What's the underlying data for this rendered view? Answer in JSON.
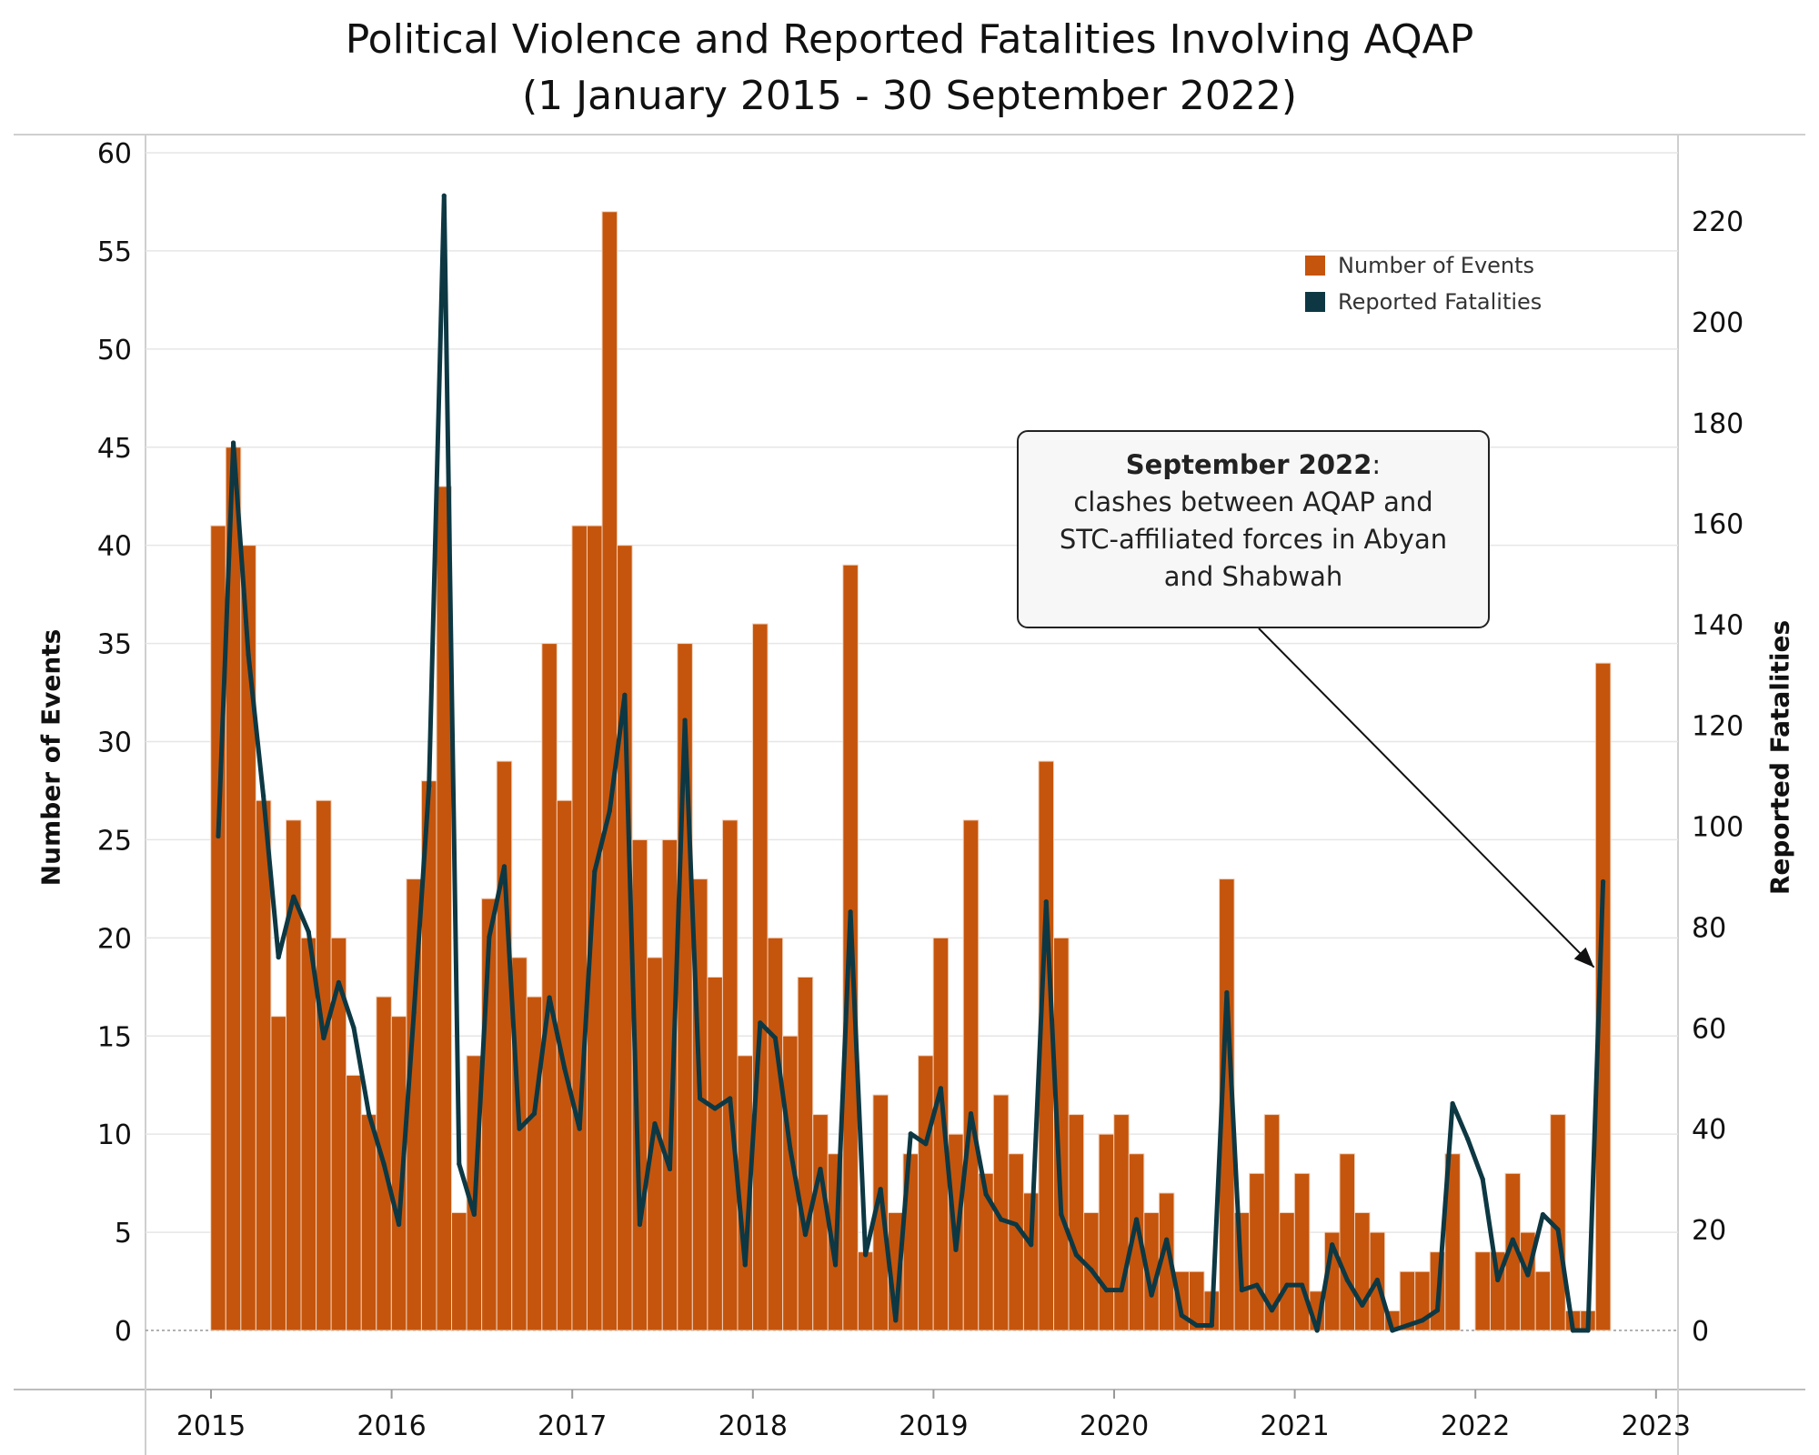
{
  "title_line1": "Political Violence and Reported Fatalities Involving AQAP",
  "title_line2": "(1 January 2015 - 30 September 2022)",
  "annotation": {
    "heading": "September 2022",
    "heading_suffix": ":",
    "body_lines": [
      "clashes between AQAP and",
      "STC-affiliated forces in Abyan",
      "and Shabwah"
    ]
  },
  "colors": {
    "bars": "#c5550c",
    "line": "#0d3843",
    "grid": "#e6e6e6"
  },
  "chart_data": {
    "type": "bar",
    "x_start": "2015-01",
    "x_end": "2022-09",
    "xlabel": "",
    "x_ticks": [
      "2015",
      "2016",
      "2017",
      "2018",
      "2019",
      "2020",
      "2021",
      "2022",
      "2023"
    ],
    "ylabel": "Number of Events",
    "ylim": [
      0,
      60
    ],
    "y_ticks": [
      0,
      5,
      10,
      15,
      20,
      25,
      30,
      35,
      40,
      45,
      50,
      55,
      60
    ],
    "y2label": "Reported Fatalities",
    "y2lim": [
      0,
      240
    ],
    "y2_ticks": [
      0,
      20,
      40,
      60,
      80,
      100,
      120,
      140,
      160,
      180,
      200,
      220
    ],
    "legend_position": "top-right",
    "series": [
      {
        "name": "Number of Events",
        "type": "bar",
        "axis": "left",
        "values": [
          41,
          45,
          40,
          27,
          16,
          26,
          20,
          27,
          20,
          13,
          11,
          17,
          16,
          23,
          28,
          43,
          6,
          14,
          22,
          29,
          19,
          17,
          35,
          27,
          41,
          41,
          57,
          40,
          25,
          19,
          25,
          35,
          23,
          18,
          26,
          14,
          36,
          20,
          15,
          18,
          11,
          9,
          39,
          4,
          12,
          6,
          9,
          14,
          20,
          10,
          26,
          8,
          12,
          9,
          7,
          29,
          20,
          11,
          6,
          10,
          11,
          9,
          6,
          7,
          3,
          3,
          2,
          23,
          6,
          8,
          11,
          6,
          8,
          2,
          5,
          9,
          6,
          5,
          1,
          3,
          3,
          4,
          9,
          0,
          4,
          4,
          8,
          5,
          3,
          11,
          1,
          1,
          34
        ]
      },
      {
        "name": "Reported Fatalities",
        "type": "line",
        "axis": "right",
        "values": [
          98,
          176,
          134,
          106,
          74,
          86,
          79,
          58,
          69,
          60,
          43,
          33,
          21,
          63,
          108,
          225,
          33,
          23,
          78,
          92,
          40,
          43,
          66,
          52,
          40,
          91,
          103,
          126,
          21,
          41,
          32,
          121,
          46,
          44,
          46,
          13,
          61,
          58,
          36,
          19,
          32,
          13,
          83,
          15,
          28,
          2,
          39,
          37,
          48,
          16,
          43,
          27,
          22,
          21,
          17,
          85,
          23,
          15,
          12,
          8,
          8,
          22,
          7,
          18,
          3,
          1,
          1,
          67,
          8,
          9,
          4,
          9,
          9,
          0,
          17,
          10,
          5,
          10,
          0,
          1,
          2,
          4,
          45,
          38,
          30,
          10,
          18,
          11,
          23,
          20,
          0,
          0,
          89
        ]
      }
    ]
  }
}
